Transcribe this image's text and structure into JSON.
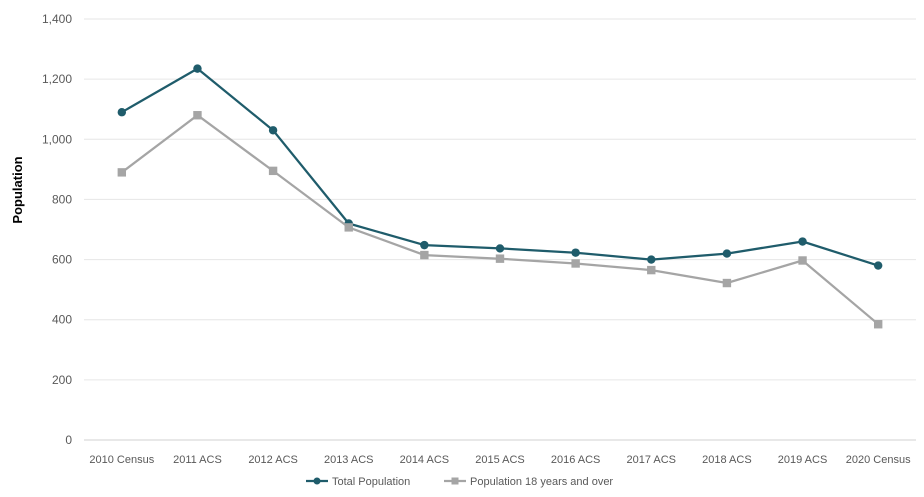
{
  "chart_data": {
    "type": "line",
    "title": "",
    "xlabel": "",
    "ylabel": "Population",
    "ylim": [
      0,
      1400
    ],
    "yticks": [
      0,
      200,
      400,
      600,
      800,
      1000,
      1200,
      1400
    ],
    "ytick_labels": [
      "0",
      "200",
      "400",
      "600",
      "800",
      "1,000",
      "1,200",
      "1,400"
    ],
    "grid": true,
    "legend_position": "bottom",
    "categories": [
      "2010 Census",
      "2011 ACS",
      "2012 ACS",
      "2013 ACS",
      "2014 ACS",
      "2015 ACS",
      "2016 ACS",
      "2017 ACS",
      "2018 ACS",
      "2019 ACS",
      "2020 Census"
    ],
    "series": [
      {
        "name": "Total Population",
        "color": "#1f5c6b",
        "marker": "circle",
        "values": [
          1090,
          1235,
          1030,
          720,
          648,
          637,
          623,
          600,
          620,
          660,
          580
        ]
      },
      {
        "name": "Population 18 years and over",
        "color": "#a5a5a5",
        "marker": "square",
        "values": [
          890,
          1080,
          895,
          707,
          615,
          603,
          587,
          565,
          522,
          597,
          385
        ]
      }
    ]
  }
}
